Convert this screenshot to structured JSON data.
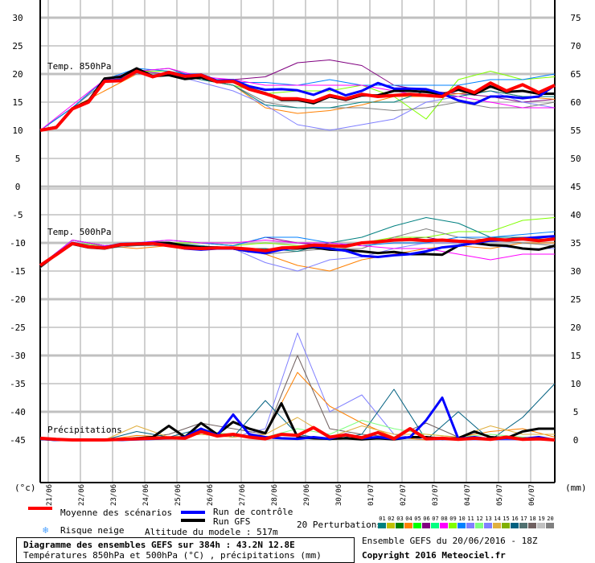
{
  "chart_data": {
    "type": "line",
    "title": "Diagramme des ensembles GEFS sur 384h : 43.2N 12.8E",
    "subtitle": "Températures 850hPa et 500hPa (°C) , précipitations (mm)",
    "run_label": "Ensemble GEFS du 20/06/2016 - 18Z",
    "copyright": "Copyright 2016 Meteociel.fr",
    "left_unit": "(°c)",
    "right_unit": "(mm)",
    "left_ticks": [
      "30",
      "25",
      "20",
      "15",
      "10",
      "5",
      "0",
      "-5",
      "-10",
      "-15",
      "-20",
      "-25",
      "-30",
      "-35",
      "-40",
      "-45"
    ],
    "right_ticks": [
      "75",
      "70",
      "65",
      "60",
      "55",
      "50",
      "45",
      "40",
      "35",
      "30",
      "25",
      "20",
      "15",
      "10",
      "5",
      "0"
    ],
    "x_ticks": [
      "21/06",
      "22/06",
      "23/06",
      "24/06",
      "25/06",
      "26/06",
      "27/06",
      "28/06",
      "29/06",
      "30/06",
      "01/07",
      "02/07",
      "03/07",
      "04/07",
      "05/07",
      "06/07"
    ],
    "time_range_hours": [
      0,
      384
    ],
    "temp_range": [
      -45,
      30
    ],
    "precip_range": [
      0,
      20
    ],
    "grid": true,
    "panels": {
      "t850": {
        "label": "Temp. 850hPa"
      },
      "t500": {
        "label": "Temp. 500hPa"
      },
      "precip": {
        "label": "Précipitations"
      }
    },
    "legend": {
      "mean": "Moyenne des scénarios",
      "control": "Run de contrôle",
      "gfs": "Run GFS",
      "snow": "Risque neige",
      "altitude": "Altitude du modele : 517m",
      "perturbations": "20 Perturbations",
      "members": [
        "01",
        "02",
        "03",
        "04",
        "05",
        "06",
        "07",
        "08",
        "09",
        "10",
        "11",
        "12",
        "13",
        "14",
        "15",
        "16",
        "17",
        "18",
        "19",
        "20"
      ]
    },
    "colors": {
      "mean": "#ff0000",
      "control": "#0000ff",
      "gfs": "#000000",
      "members": [
        "#008080",
        "#c0c000",
        "#008000",
        "#ff8000",
        "#00ff00",
        "#800080",
        "#00ff80",
        "#ff00ff",
        "#80ff00",
        "#0080ff",
        "#8080ff",
        "#80ff80",
        "#8080ff",
        "#e0b040",
        "#80b000",
        "#006080",
        "#507070",
        "#706060",
        "#c0c0c0",
        "#808080"
      ]
    },
    "main_step_hours": 12,
    "t850": {
      "mean": [
        10,
        10.5,
        13.8,
        15,
        18.7,
        18.8,
        20.5,
        19.5,
        20.3,
        19.6,
        19.8,
        18.6,
        18.7,
        17.3,
        16.5,
        15.6,
        15.6,
        15.1,
        16.2,
        15.6,
        16.4,
        16.0,
        16.2,
        16.4,
        16.2,
        16.0,
        17.7,
        16.7,
        18.4,
        17.0,
        18.1,
        16.7,
        18.0
      ],
      "control": [
        10,
        10.5,
        13.8,
        15,
        18.8,
        19,
        20.4,
        19.6,
        20.2,
        19.8,
        19.9,
        18.8,
        18.9,
        17.8,
        17.2,
        17.3,
        17.1,
        16.3,
        17.4,
        16.2,
        17.0,
        18.4,
        17.4,
        17.4,
        17.3,
        16.5,
        15.3,
        14.7,
        16.0,
        16.0,
        15.7,
        16.0,
        18.0
      ],
      "gfs": [
        10,
        10.6,
        13.9,
        15.2,
        19.2,
        19.5,
        21,
        19.6,
        19.8,
        19.1,
        19.4,
        18.6,
        18.6,
        17.4,
        16.6,
        15.4,
        15.4,
        14.8,
        16.0,
        15.4,
        16.2,
        16.2,
        17.0,
        17.0,
        16.8,
        16.4,
        17.2,
        16.4,
        17.8,
        16.8,
        17.0,
        16.5,
        16.5
      ],
      "perturbations_step_hours": 24,
      "perturbations": [
        {
          "member": "06",
          "values": [
            10,
            14,
            19,
            20.5,
            20,
            19,
            19,
            19.5,
            22,
            22.5,
            21.5,
            18,
            17,
            16.5,
            16,
            15,
            15.5
          ]
        },
        {
          "member": "04",
          "values": [
            10,
            14,
            17,
            20,
            20,
            19,
            18,
            14,
            13,
            13.5,
            14.5,
            16,
            16,
            16.5,
            17,
            16,
            15.5
          ]
        },
        {
          "member": "13",
          "values": [
            10,
            14,
            18.5,
            20,
            20,
            18.5,
            17,
            14.5,
            11,
            10,
            11,
            12,
            15,
            16,
            17,
            15,
            14
          ]
        },
        {
          "member": "09",
          "values": [
            10,
            14,
            19,
            20.5,
            20.5,
            19,
            18,
            16.5,
            17,
            17,
            18,
            16,
            12,
            19,
            20.5,
            19,
            19.5
          ]
        },
        {
          "member": "20",
          "values": [
            10,
            14,
            18.5,
            20,
            20,
            19,
            18,
            15,
            14,
            14,
            14,
            13.5,
            14,
            15,
            14,
            14,
            15
          ]
        },
        {
          "member": "01",
          "values": [
            10,
            14,
            19,
            20.5,
            21,
            19,
            18,
            14.5,
            14,
            14,
            15,
            15,
            17,
            16,
            17,
            16,
            16
          ]
        },
        {
          "member": "10",
          "values": [
            10,
            14,
            19,
            21,
            20.5,
            19.5,
            18.5,
            18.5,
            18,
            19,
            18,
            18,
            18,
            18,
            19,
            19,
            20
          ]
        },
        {
          "member": "08",
          "values": [
            10,
            14.5,
            19,
            20.5,
            21,
            19.5,
            19,
            18,
            18,
            18,
            18,
            17,
            16,
            16,
            15,
            14,
            14
          ]
        }
      ]
    },
    "t500": {
      "mean": [
        -14,
        -12.1,
        -10.1,
        -10.7,
        -10.9,
        -10.3,
        -10.2,
        -10.1,
        -10.5,
        -10.9,
        -11,
        -10.9,
        -10.9,
        -11.1,
        -11.4,
        -10.9,
        -10.8,
        -10.4,
        -10.5,
        -10.6,
        -10,
        -9.8,
        -9.5,
        -9.4,
        -9.6,
        -9.5,
        -9.7,
        -9.8,
        -9.3,
        -9.5,
        -9.3,
        -9.6,
        -9.3
      ],
      "control": [
        -14,
        -12,
        -10,
        -10.6,
        -10.8,
        -10.2,
        -10.1,
        -10,
        -10.4,
        -11,
        -11.2,
        -11,
        -11,
        -11.5,
        -11.8,
        -11.2,
        -10.8,
        -10.6,
        -11,
        -11.4,
        -12.3,
        -12.5,
        -12.2,
        -12,
        -11.5,
        -10.8,
        -10.5,
        -10,
        -9.6,
        -9.5,
        -9.2,
        -9,
        -8.8
      ],
      "gfs": [
        -14.2,
        -12.1,
        -10.2,
        -10.8,
        -11,
        -10.4,
        -10.2,
        -10,
        -10,
        -10.5,
        -10.8,
        -10.8,
        -11,
        -11.5,
        -11.3,
        -11,
        -11,
        -10.8,
        -11.2,
        -11.3,
        -11.5,
        -11.8,
        -11.6,
        -12,
        -12,
        -12.1,
        -10.5,
        -10,
        -10.4,
        -10.5,
        -11,
        -11.2,
        -10.5
      ],
      "perturbations_step_hours": 24,
      "perturbations": [
        {
          "member": "06",
          "values": [
            -14,
            -9.5,
            -10.5,
            -10,
            -10,
            -10,
            -10.5,
            -9,
            -10,
            -10.5,
            -10,
            -9.5,
            -9,
            -10,
            -9.5,
            -9,
            -9
          ]
        },
        {
          "member": "04",
          "values": [
            -14,
            -9.5,
            -10.5,
            -11,
            -10.5,
            -11,
            -11,
            -12,
            -14,
            -15,
            -13,
            -12,
            -11,
            -10.5,
            -11,
            -10,
            -10
          ]
        },
        {
          "member": "13",
          "values": [
            -14,
            -10,
            -10.5,
            -10.5,
            -10.5,
            -11,
            -11,
            -13.5,
            -15,
            -13,
            -12.5,
            -11,
            -10,
            -10,
            -10.5,
            -11,
            -11
          ]
        },
        {
          "member": "09",
          "values": [
            -14,
            -10,
            -10.5,
            -10,
            -10,
            -10,
            -10.5,
            -10,
            -10.5,
            -11,
            -10,
            -9,
            -9,
            -8,
            -8,
            -6,
            -5.5
          ]
        },
        {
          "member": "20",
          "values": [
            -14.5,
            -10,
            -11,
            -10.5,
            -10.5,
            -10.5,
            -11,
            -12,
            -11.5,
            -11,
            -11,
            -9,
            -7.5,
            -9,
            -9.5,
            -10,
            -10.5
          ]
        },
        {
          "member": "01",
          "values": [
            -14,
            -9.5,
            -10.5,
            -10.5,
            -10,
            -10.5,
            -11,
            -11,
            -11.5,
            -10,
            -9,
            -7,
            -5.5,
            -6.5,
            -9,
            -9,
            -9.5
          ]
        },
        {
          "member": "10",
          "values": [
            -14,
            -9.5,
            -10.5,
            -10,
            -9.5,
            -10,
            -10.5,
            -9,
            -9,
            -10,
            -10.5,
            -10,
            -10,
            -9,
            -9,
            -8.5,
            -8
          ]
        },
        {
          "member": "08",
          "values": [
            -14,
            -9.5,
            -10.5,
            -10,
            -9.5,
            -10,
            -10,
            -9.5,
            -10,
            -10,
            -10.5,
            -11,
            -11,
            -12,
            -13,
            -12,
            -12
          ]
        }
      ]
    },
    "precip": {
      "mean": [
        0.3,
        0.1,
        0,
        0,
        0,
        0.1,
        0.2,
        0.3,
        0.4,
        0.3,
        1.5,
        0.7,
        1.0,
        0.5,
        0.2,
        1.0,
        0.8,
        2.2,
        0.5,
        0.9,
        0.4,
        1.3,
        0.2,
        2.0,
        0.2,
        0.3,
        0.1,
        0.3,
        0.1,
        0.5,
        0.1,
        0.2,
        0
      ],
      "control": [
        0.2,
        0,
        0,
        0,
        0,
        0,
        0.1,
        0.2,
        0.3,
        0.5,
        2.0,
        0.8,
        4.5,
        1.0,
        0.5,
        0.3,
        0.2,
        0.5,
        0.2,
        1.0,
        0.3,
        0.5,
        0.2,
        0.5,
        3.5,
        7.5,
        0.2,
        0.5,
        0.1,
        0.3,
        0.2,
        0.5,
        0
      ],
      "gfs": [
        0.2,
        0,
        0,
        0,
        0,
        0,
        0.3,
        0.5,
        2.5,
        0.5,
        3.0,
        1.0,
        3.2,
        2.0,
        1.2,
        6.5,
        0.5,
        0.3,
        0.2,
        0.3,
        0.1,
        0.3,
        0.1,
        0.5,
        0.5,
        0.2,
        0.3,
        1.5,
        0.5,
        0.3,
        1.5,
        2.0,
        2.0
      ],
      "perturbations_step_hours": 24,
      "perturbations": [
        {
          "member": "13",
          "values": [
            0,
            0,
            0,
            0,
            0.5,
            1,
            0.5,
            2,
            19,
            5,
            8,
            1,
            0,
            0,
            0,
            0,
            0
          ]
        },
        {
          "member": "04",
          "values": [
            0,
            0,
            0,
            0.8,
            0.5,
            1,
            0.5,
            1,
            12,
            6,
            3,
            0.5,
            0,
            0.5,
            1.5,
            2,
            0.5
          ]
        },
        {
          "member": "18",
          "values": [
            0,
            0,
            0,
            0.3,
            1,
            3,
            2,
            1,
            15,
            2,
            1,
            0.5,
            3,
            0.5,
            0,
            0.5,
            0
          ]
        },
        {
          "member": "16",
          "values": [
            0,
            0,
            0,
            1.5,
            0.5,
            2,
            0.5,
            7,
            1,
            0,
            1,
            9,
            0,
            5,
            0,
            4,
            10
          ]
        },
        {
          "member": "12",
          "values": [
            0,
            0,
            0,
            0.5,
            0.2,
            1.5,
            1,
            0.5,
            2,
            1,
            3.5,
            2,
            1,
            0.5,
            1,
            0.5,
            0
          ]
        },
        {
          "member": "14",
          "values": [
            0,
            0,
            0,
            2.5,
            0.5,
            1,
            0.5,
            1,
            4,
            0.5,
            2.5,
            1,
            1,
            0.5,
            2.5,
            1,
            1
          ]
        }
      ]
    }
  }
}
